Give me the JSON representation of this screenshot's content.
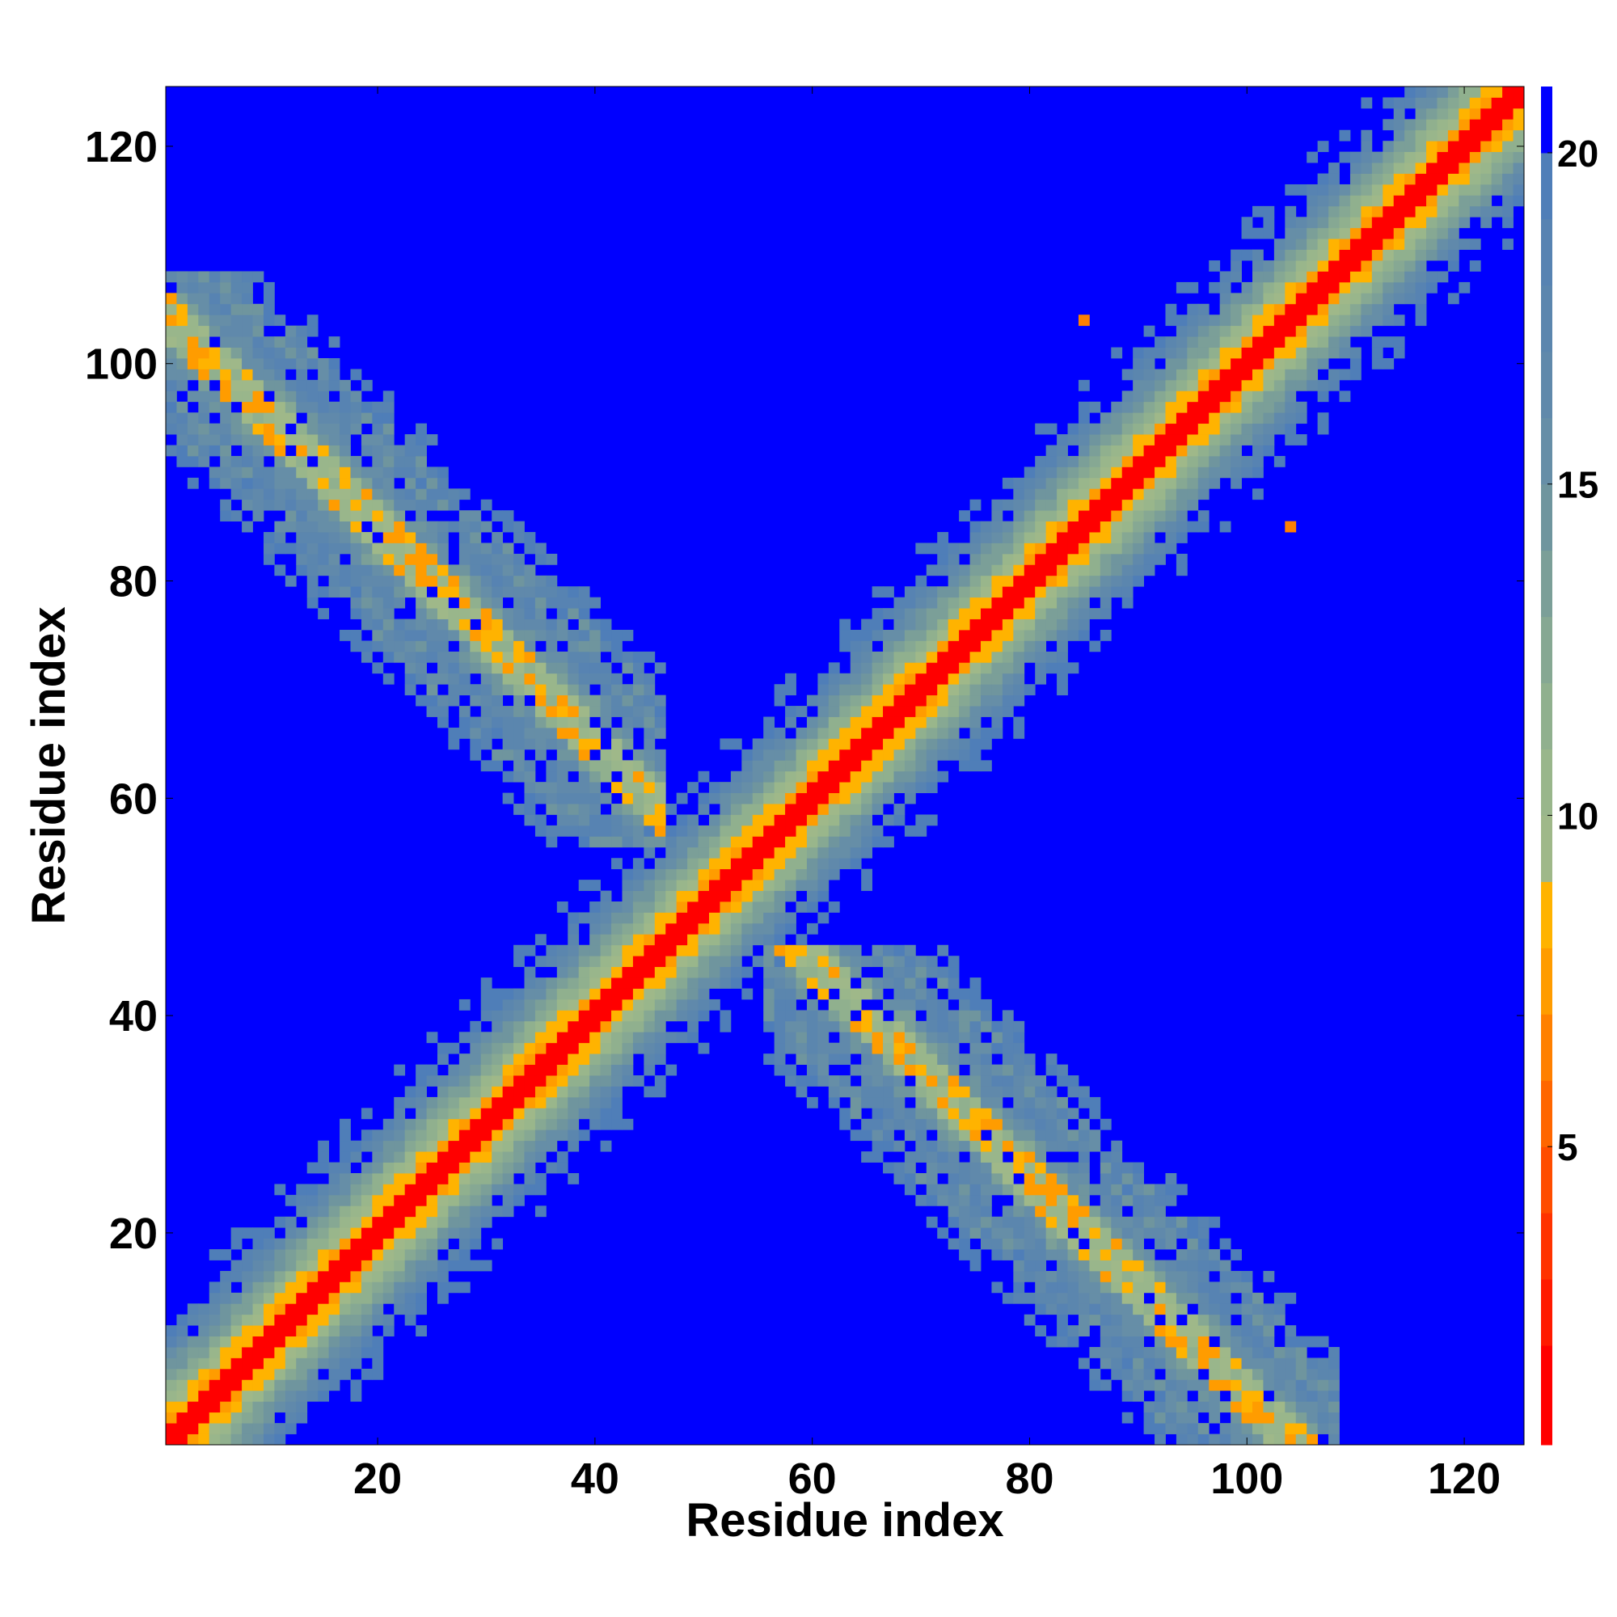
{
  "chart_data": {
    "type": "heatmap",
    "title": "",
    "xlabel": "Residue index",
    "ylabel": "Residue index",
    "xlim": [
      1,
      126
    ],
    "ylim": [
      1,
      126
    ],
    "xticks": [
      20,
      40,
      60,
      80,
      100,
      120
    ],
    "yticks": [
      20,
      40,
      60,
      80,
      100,
      120
    ],
    "colorbar": {
      "range": [
        0.5,
        21
      ],
      "ticks": [
        5,
        10,
        15,
        20
      ],
      "levels": [
        {
          "max": 2,
          "color": "#ff0000"
        },
        {
          "max": 3,
          "color": "#ff1a00"
        },
        {
          "max": 4,
          "color": "#ff3300"
        },
        {
          "max": 5,
          "color": "#ff4d00"
        },
        {
          "max": 6,
          "color": "#ff6600"
        },
        {
          "max": 7,
          "color": "#ff8000"
        },
        {
          "max": 8,
          "color": "#ff9c00"
        },
        {
          "max": 9,
          "color": "#ffb300"
        },
        {
          "max": 10,
          "color": "#9fb889"
        },
        {
          "max": 11,
          "color": "#99b68b"
        },
        {
          "max": 12,
          "color": "#90b08e"
        },
        {
          "max": 13,
          "color": "#86a893"
        },
        {
          "max": 14,
          "color": "#7b9f98"
        },
        {
          "max": 15,
          "color": "#6f959e"
        },
        {
          "max": 16,
          "color": "#668ea7"
        },
        {
          "max": 17,
          "color": "#6089ab"
        },
        {
          "max": 18,
          "color": "#5b86ae"
        },
        {
          "max": 19,
          "color": "#5783b2"
        },
        {
          "max": 20,
          "color": "#4f7eb8"
        },
        {
          "max": 21,
          "color": "#0000ff"
        }
      ]
    },
    "structure": {
      "n_residues": 125,
      "background_value": 21,
      "diagonal_band": {
        "core_halfwidth": 1,
        "max_halfwidth": 10
      },
      "antiparallel_contacts": [
        {
          "i_range": [
            1,
            46
          ],
          "j_range": [
            56,
            108
          ],
          "pairing_sum": 105
        }
      ],
      "isolated_contacts": [
        {
          "i": 85,
          "j": 104,
          "value": 6
        },
        {
          "i": 104,
          "j": 85,
          "value": 6
        }
      ]
    }
  }
}
